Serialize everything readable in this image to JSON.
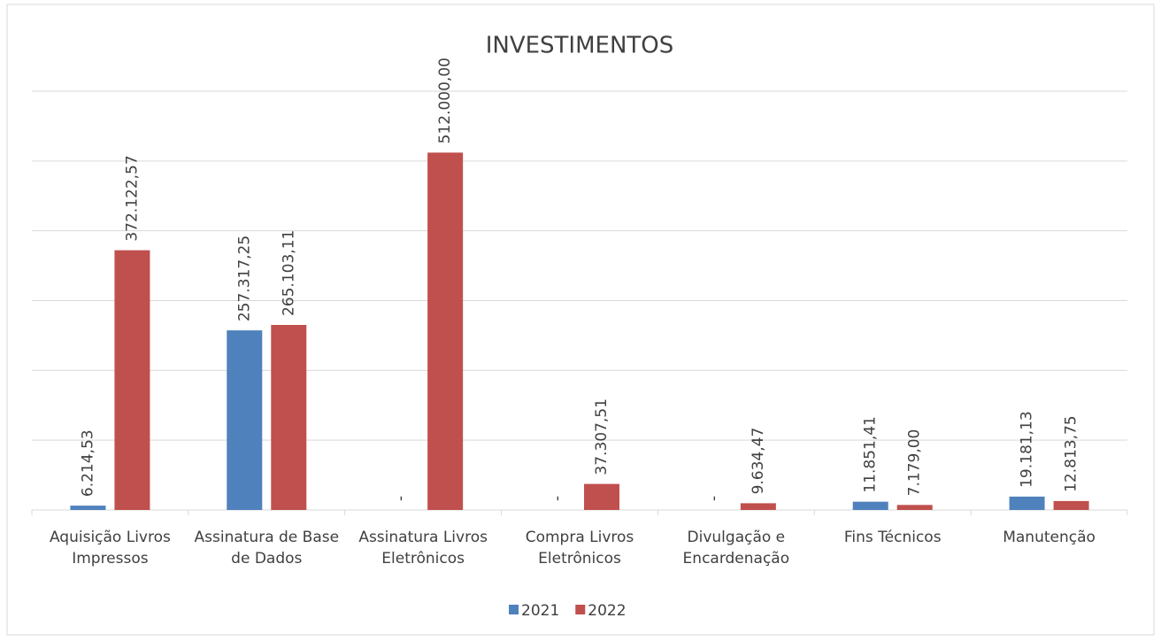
{
  "chart_data": {
    "type": "bar",
    "title": "INVESTIMENTOS",
    "categories": [
      "Aquisição Livros Impressos",
      "Assinatura de Base de Dados",
      "Assinatura Livros Eletrônicos",
      "Compra Livros Eletrônicos",
      "Divulgação e Encardenação",
      "Fins Técnicos",
      "Manutenção"
    ],
    "series": [
      {
        "name": "2021",
        "color": "#4f81bd",
        "values": [
          6214.53,
          257317.25,
          0,
          0,
          0,
          11851.41,
          19181.13
        ],
        "value_labels": [
          "6.214,53",
          "257.317,25",
          "-",
          "-",
          "-",
          "11.851,41",
          "19.181,13"
        ]
      },
      {
        "name": "2022",
        "color": "#c0504d",
        "values": [
          372122.57,
          265103.11,
          512000,
          37307.51,
          9634.47,
          7179,
          12813.75
        ],
        "value_labels": [
          "372.122,57",
          "265.103,11",
          "512.000,00",
          "37.307,51",
          "9.634,47",
          "7.179,00",
          "12.813,75"
        ]
      }
    ],
    "ylim": [
      0,
      600000
    ],
    "yticks": [
      0,
      100000,
      200000,
      300000,
      400000,
      500000,
      600000
    ],
    "grid": true,
    "legend": "bottom"
  }
}
